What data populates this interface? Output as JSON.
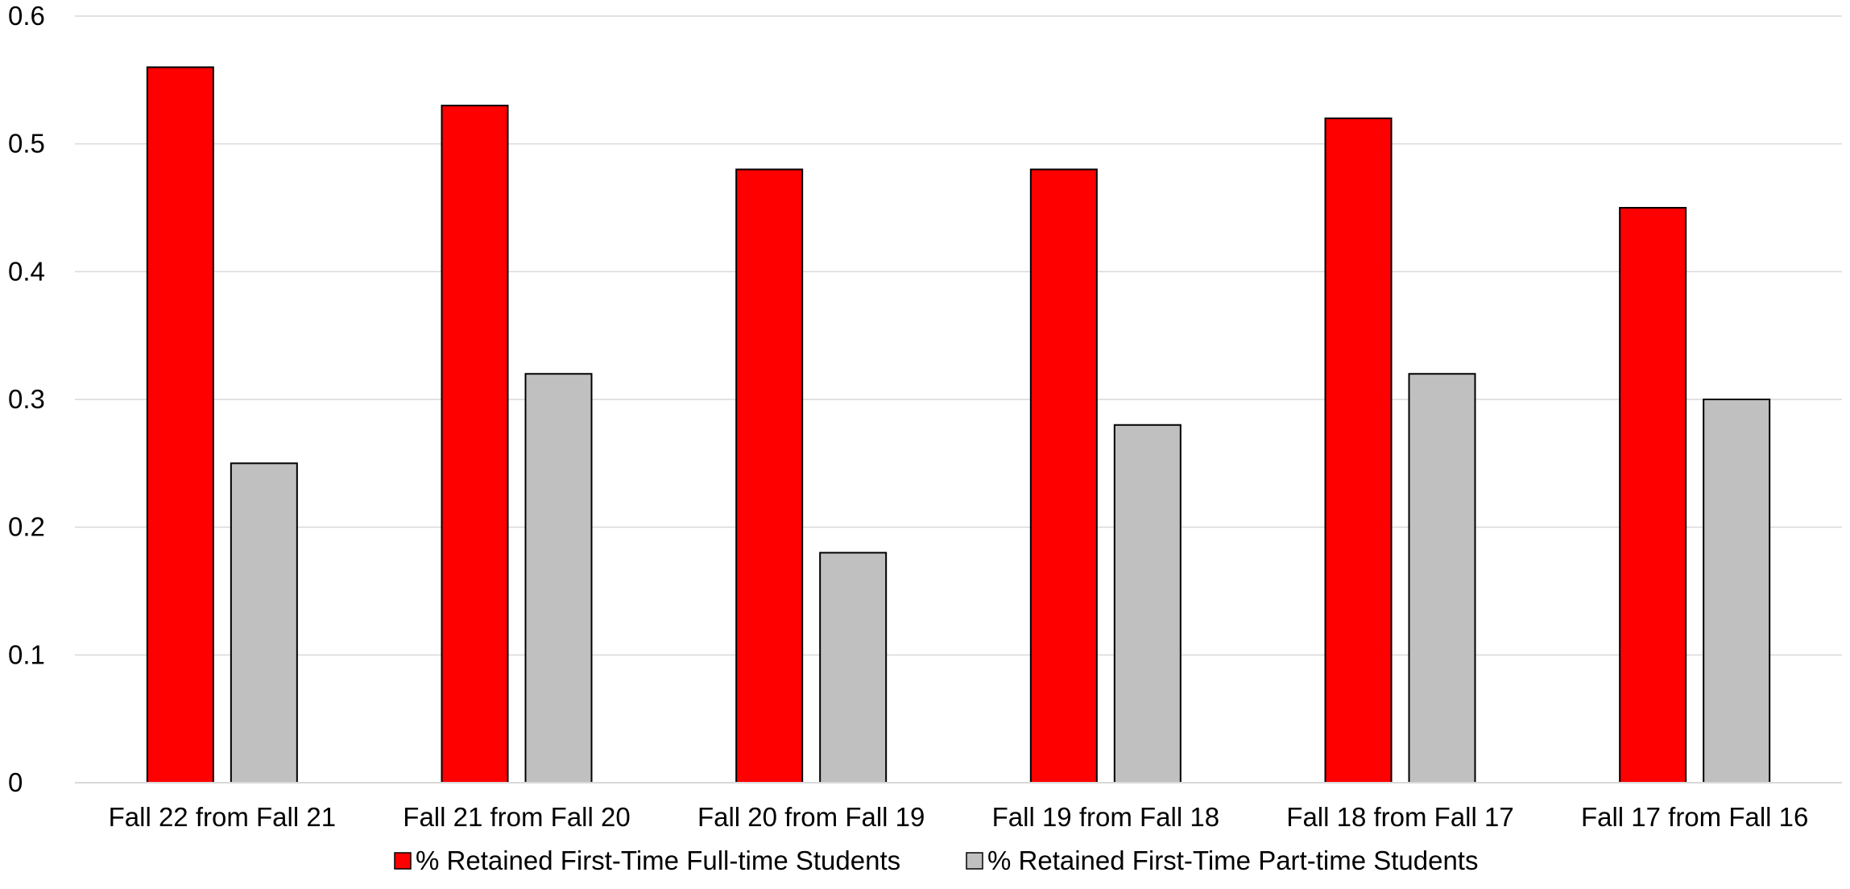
{
  "chart_data": {
    "type": "bar",
    "categories": [
      "Fall 22 from Fall 21",
      "Fall 21 from Fall 20",
      "Fall 20 from Fall 19",
      "Fall 19 from Fall 18",
      "Fall 18 from Fall 17",
      "Fall 17 from Fall 16"
    ],
    "series": [
      {
        "name": "% Retained First-Time Full-time Students",
        "color": "#ff0000",
        "values": [
          0.56,
          0.53,
          0.48,
          0.48,
          0.52,
          0.45
        ]
      },
      {
        "name": "% Retained First-Time Part-time Students",
        "color": "#c0c0c0",
        "values": [
          0.25,
          0.32,
          0.18,
          0.28,
          0.32,
          0.3
        ]
      }
    ],
    "y_ticks": [
      "0",
      "0.1",
      "0.2",
      "0.3",
      "0.4",
      "0.5",
      "0.6"
    ],
    "ylim": [
      0,
      0.6
    ],
    "grid": true,
    "legend_position": "bottom"
  }
}
